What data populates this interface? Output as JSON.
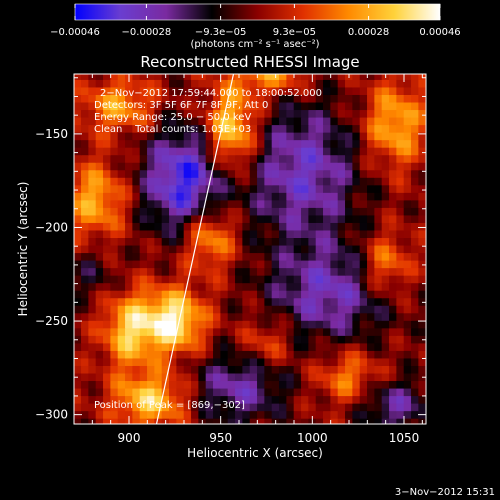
{
  "chart_data": {
    "type": "heatmap",
    "title": "Reconstructed RHESSI Image",
    "xlabel": "Heliocentric X (arcsec)",
    "ylabel": "Heliocentric Y (arcsec)",
    "xlim": [
      870,
      1062
    ],
    "ylim": [
      -305,
      -118
    ],
    "x_ticks": [
      {
        "value": 900,
        "label": "900"
      },
      {
        "value": 950,
        "label": "950"
      },
      {
        "value": 1000,
        "label": "1000"
      },
      {
        "value": 1050,
        "label": "1050"
      }
    ],
    "y_ticks": [
      {
        "value": -150,
        "label": "−150"
      },
      {
        "value": -200,
        "label": "−200"
      },
      {
        "value": -250,
        "label": "−250"
      },
      {
        "value": -300,
        "label": "−300"
      }
    ],
    "colorbar": {
      "range": [
        -0.00046,
        0.00046
      ],
      "colors": [
        "#0000ff",
        "#6a3dd0",
        "#7a2aa0",
        "#000000",
        "#8a0000",
        "#e03000",
        "#ff8a00",
        "#ffd23a",
        "#ffffff"
      ],
      "ticks": [
        {
          "value": -0.00046,
          "label": "−0.00046"
        },
        {
          "value": -0.00028,
          "label": "−0.00028"
        },
        {
          "value": -9.3e-05,
          "label": "−9.3e−05"
        },
        {
          "value": 9.3e-05,
          "label": "9.3e−05"
        },
        {
          "value": 0.00028,
          "label": "0.00028"
        },
        {
          "value": 0.00046,
          "label": "0.00046"
        }
      ],
      "unit_label": "(photons cm⁻² s⁻¹ asec⁻²)"
    },
    "annotations": [
      "2−Nov−2012 17:59:44.000 to 18:00:52.000",
      "Detectors: 3F 5F 6F 7F 8F 9F, Att 0",
      "Energy Range: 25.0 − 50.0 keV",
      "Clean    Total counts: 1.05E+03"
    ],
    "peak_label": "Position of Peak = [869,−302]",
    "limb_line": {
      "x": [
        915,
        957
      ],
      "y": [
        -305,
        -118
      ]
    },
    "grid": {
      "x_centers": [
        872,
        1060
      ],
      "y_centers": [
        -304,
        -119
      ],
      "nx": 48,
      "ny": 47
    },
    "bright_sources": [
      {
        "x": 924,
        "y": -250,
        "sx": 12,
        "sy": 12,
        "amp": 0.00044
      },
      {
        "x": 956,
        "y": -148,
        "sx": 10,
        "sy": 16,
        "amp": 0.0004
      },
      {
        "x": 944,
        "y": -205,
        "sx": 10,
        "sy": 12,
        "amp": 0.0003
      },
      {
        "x": 900,
        "y": -255,
        "sx": 10,
        "sy": 14,
        "amp": 0.00032
      },
      {
        "x": 912,
        "y": -292,
        "sx": 14,
        "sy": 10,
        "amp": 0.00034
      },
      {
        "x": 882,
        "y": -185,
        "sx": 12,
        "sy": 14,
        "amp": 0.00028
      },
      {
        "x": 895,
        "y": -135,
        "sx": 14,
        "sy": 10,
        "amp": 0.00026
      },
      {
        "x": 1045,
        "y": -145,
        "sx": 12,
        "sy": 16,
        "amp": 0.0003
      },
      {
        "x": 1040,
        "y": -220,
        "sx": 10,
        "sy": 12,
        "amp": 0.00026
      },
      {
        "x": 1020,
        "y": -280,
        "sx": 12,
        "sy": 10,
        "amp": 0.00022
      },
      {
        "x": 975,
        "y": -262,
        "sx": 10,
        "sy": 10,
        "amp": 0.00018
      },
      {
        "x": 978,
        "y": -118,
        "sx": 14,
        "sy": 8,
        "amp": 0.00026
      }
    ],
    "dark_sources": [
      {
        "x": 930,
        "y": -175,
        "sx": 16,
        "sy": 20,
        "amp": -0.0004
      },
      {
        "x": 995,
        "y": -170,
        "sx": 22,
        "sy": 26,
        "amp": -0.0003
      },
      {
        "x": 1010,
        "y": -235,
        "sx": 24,
        "sy": 18,
        "amp": -0.00028
      },
      {
        "x": 960,
        "y": -285,
        "sx": 18,
        "sy": 14,
        "amp": -0.00026
      },
      {
        "x": 1045,
        "y": -295,
        "sx": 14,
        "sy": 10,
        "amp": -0.00024
      },
      {
        "x": 880,
        "y": -225,
        "sx": 10,
        "sy": 10,
        "amp": -0.00012
      }
    ]
  },
  "timestamp": "3−Nov−2012 15:31"
}
